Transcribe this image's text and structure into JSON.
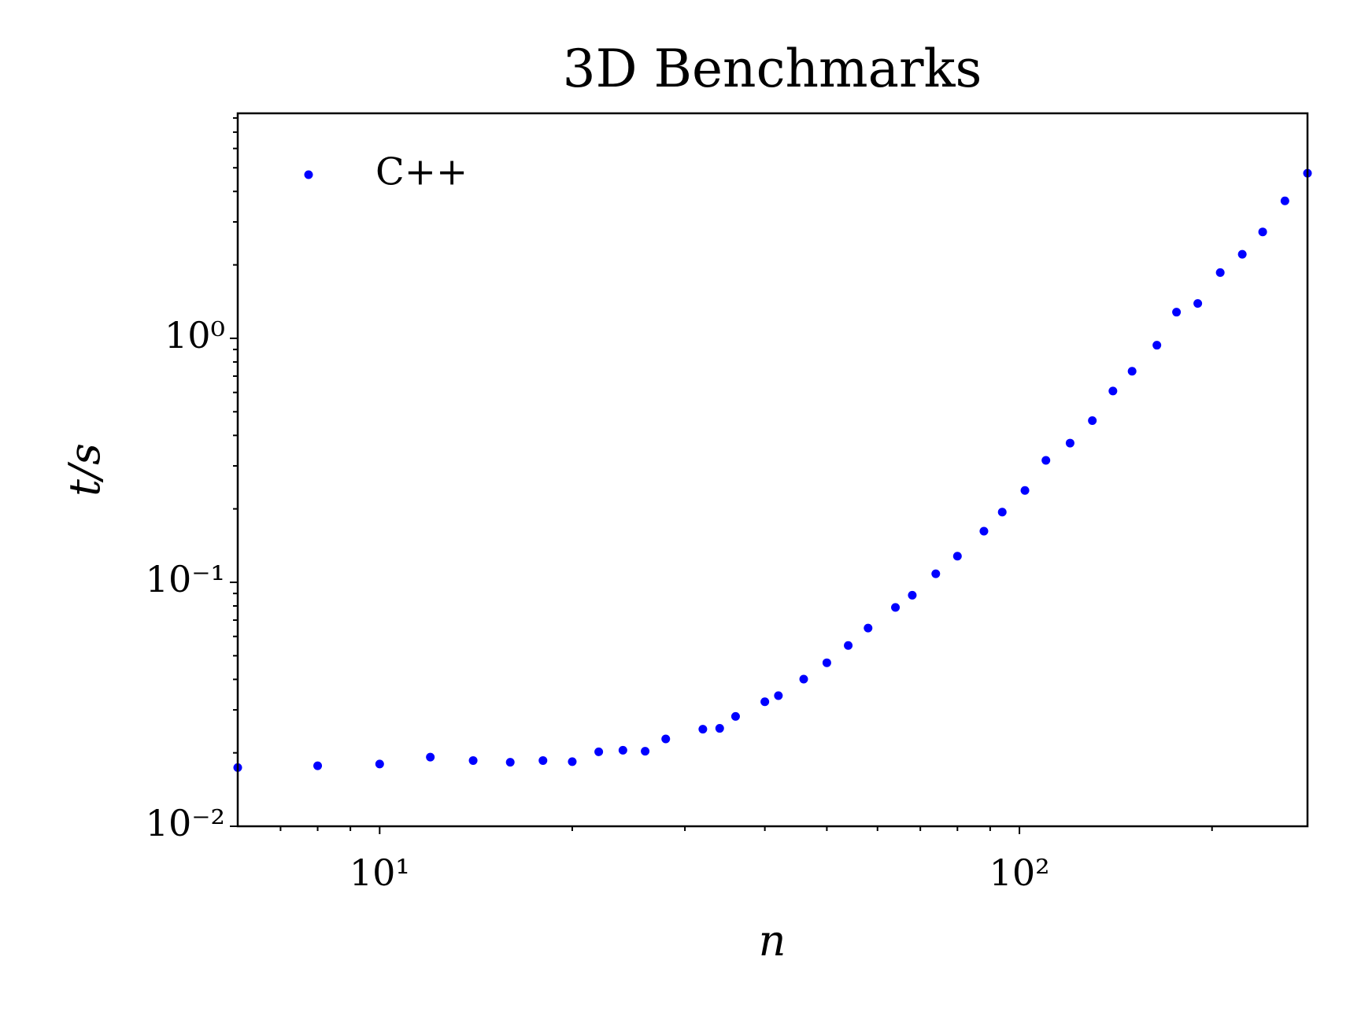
{
  "chart_data": {
    "type": "scatter",
    "title": "3D Benchmarks",
    "xlabel": "n",
    "ylabel": "t/s",
    "xscale": "log",
    "yscale": "log",
    "legend": "upper left",
    "xlim": [
      6,
      282
    ],
    "ylim": [
      0.01,
      8.36
    ],
    "xticks": [
      {
        "value": 10,
        "label": "10¹"
      },
      {
        "value": 100,
        "label": "10²"
      }
    ],
    "xminorticks": [
      7,
      8,
      9,
      20,
      30,
      40,
      50,
      60,
      70,
      80,
      90,
      200
    ],
    "yticks": [
      {
        "value": 0.01,
        "label": "10⁻²"
      },
      {
        "value": 0.1,
        "label": "10⁻¹"
      },
      {
        "value": 1,
        "label": "10⁰"
      }
    ],
    "yminorticks": [
      0.02,
      0.03,
      0.04,
      0.05,
      0.06,
      0.07,
      0.08,
      0.09,
      0.2,
      0.3,
      0.4,
      0.5,
      0.6,
      0.7,
      0.8,
      0.9,
      2,
      3,
      4,
      5,
      6,
      7,
      8
    ],
    "series": [
      {
        "name": "C++",
        "color": "#0000ff",
        "x": [
          6,
          8,
          10,
          12,
          14,
          16,
          18,
          20,
          22,
          24,
          26,
          28,
          32,
          34,
          36,
          40,
          42,
          46,
          50,
          54,
          58,
          64,
          68,
          74,
          80,
          88,
          94,
          102,
          110,
          120,
          130,
          140,
          150,
          164,
          176,
          190,
          206,
          223,
          240,
          260,
          282
        ],
        "values": [
          0.0174,
          0.0177,
          0.018,
          0.0192,
          0.0186,
          0.0183,
          0.0186,
          0.0184,
          0.0202,
          0.0205,
          0.0203,
          0.0228,
          0.025,
          0.0252,
          0.0282,
          0.0324,
          0.0343,
          0.0401,
          0.0468,
          0.0551,
          0.0649,
          0.0789,
          0.0885,
          0.1084,
          0.128,
          0.162,
          0.194,
          0.238,
          0.316,
          0.372,
          0.46,
          0.608,
          0.733,
          0.937,
          1.28,
          1.39,
          1.86,
          2.21,
          2.73,
          3.66,
          4.75
        ]
      }
    ]
  }
}
